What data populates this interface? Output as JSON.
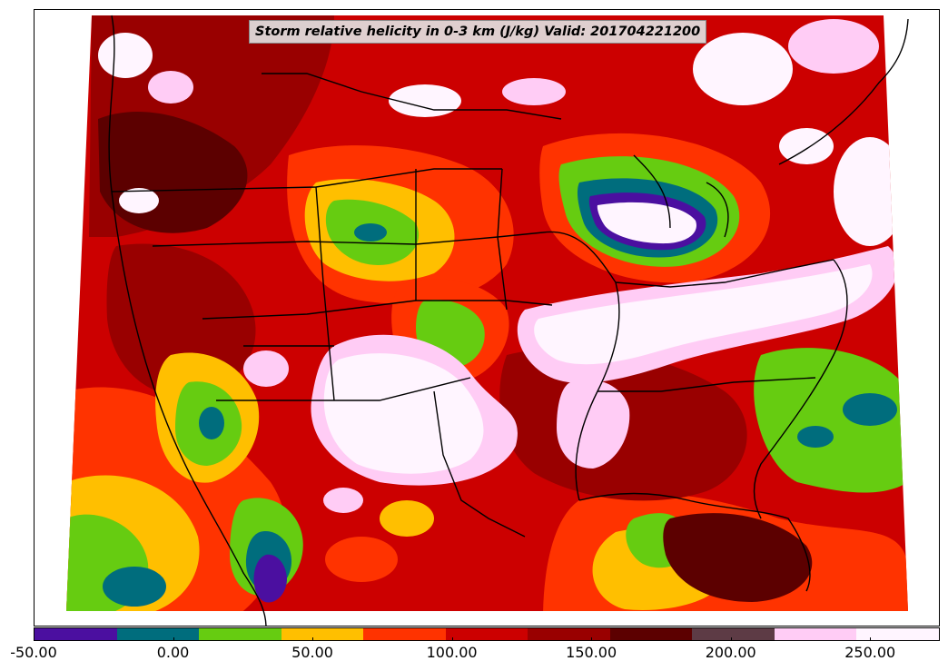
{
  "title": "Storm relative helicity in 0-3 km (J/kg) Valid: 201704221200",
  "colorbar": {
    "range": [
      -50,
      275
    ],
    "colors": [
      "#4b0fa0",
      "#006d7d",
      "#66cc11",
      "#ffbf00",
      "#ff3300",
      "#cc0000",
      "#990000",
      "#5c0000",
      "#5d3b45",
      "#ffccf5",
      "#fff5ff"
    ],
    "ticks": [
      {
        "value": -50,
        "label": "-50.00"
      },
      {
        "value": 0,
        "label": "0.00"
      },
      {
        "value": 50,
        "label": "50.00"
      },
      {
        "value": 100,
        "label": "100.00"
      },
      {
        "value": 150,
        "label": "150.00"
      },
      {
        "value": 200,
        "label": "200.00"
      },
      {
        "value": 250,
        "label": "250.00"
      }
    ]
  }
}
